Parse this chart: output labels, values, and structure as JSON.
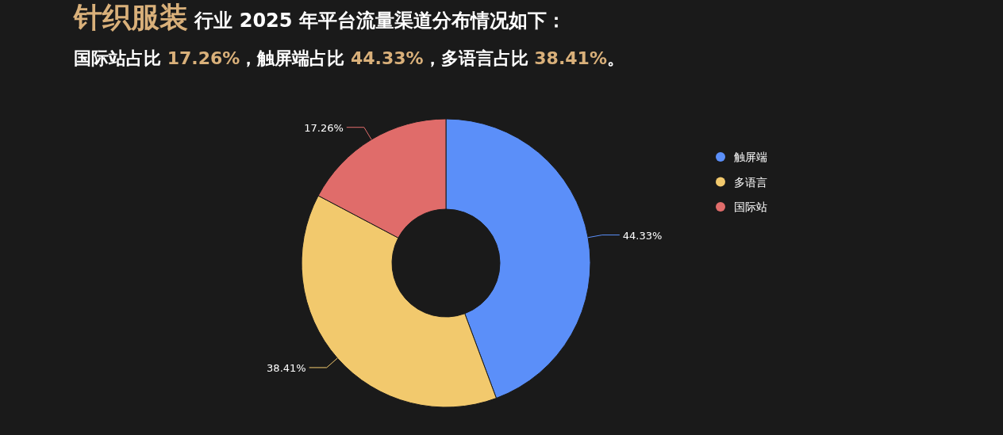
{
  "chart_data": {
    "type": "donut",
    "title": "**针织服装** 行业 2025 年平台流量渠道分布情况如下：",
    "subtitle": "国际站占比 **17.26%**，触屏端占比 **44.33%**，多语言占比 **38.41%**。",
    "categories": [
      "触屏端",
      "多语言",
      "国际站"
    ],
    "values": [
      44.33,
      38.41,
      17.26
    ],
    "colors": [
      "#5b8ff9",
      "#f2c96d",
      "#e06c6a"
    ],
    "value_labels": [
      "44.33%",
      "38.41%",
      "17.26%"
    ],
    "legend": "top right"
  }
}
